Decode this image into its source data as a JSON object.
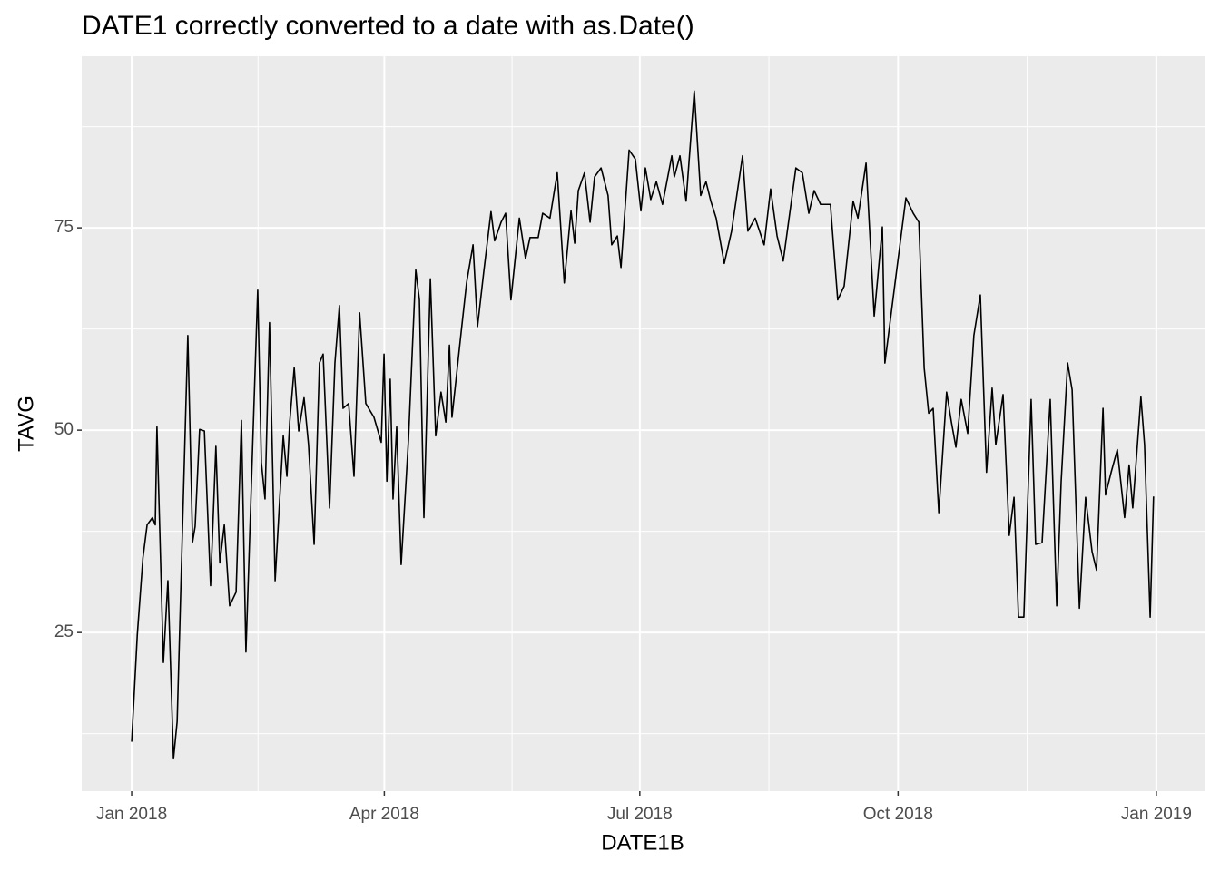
{
  "chart_data": {
    "type": "line",
    "title": "DATE1 correctly converted to a date with as.Date()",
    "x_label": "DATE1B",
    "y_label": "TAVG",
    "xlim": [
      -17.8,
      382.5
    ],
    "ylim": [
      5.4,
      96.2
    ],
    "xticks": [
      {
        "value": 0,
        "label": "Jan 2018"
      },
      {
        "value": 90,
        "label": "Apr 2018"
      },
      {
        "value": 181,
        "label": "Jul 2018"
      },
      {
        "value": 273,
        "label": "Oct 2018"
      },
      {
        "value": 365,
        "label": "Jan 2019"
      }
    ],
    "xticks_minor": [
      45,
      135.5,
      227,
      319
    ],
    "yticks": [
      25,
      50,
      75
    ],
    "yticks_minor": [
      12.5,
      37.5,
      62.5,
      87.5
    ],
    "grid": true,
    "color": "#000000",
    "x": [
      0,
      2,
      4,
      5.5,
      7.4,
      8.4,
      9,
      11.3,
      12.9,
      14.9,
      16.2,
      20,
      21.7,
      22.6,
      24.2,
      25.9,
      28.1,
      30,
      31.4,
      33,
      34.9,
      37.2,
      39.1,
      40.7,
      44.9,
      46.2,
      47.5,
      49.1,
      51.1,
      54,
      55.3,
      56.3,
      57.9,
      59.5,
      61.4,
      63,
      65,
      66.9,
      68.2,
      70.5,
      72.4,
      74,
      75.3,
      77.3,
      79.2,
      81.2,
      83.4,
      86.3,
      88.9,
      89.9,
      90.9,
      92.1,
      93.1,
      94.4,
      96,
      98.6,
      101.2,
      102.5,
      104.1,
      106.4,
      108.3,
      110.2,
      111.9,
      113.2,
      114.1,
      117.4,
      119.3,
      121.6,
      123.2,
      125.4,
      128,
      129.3,
      131.6,
      133.2,
      135.1,
      138.1,
      140.3,
      141.9,
      144.8,
      146.4,
      149,
      151.6,
      154.1,
      156.5,
      157.8,
      159.1,
      161.3,
      163.3,
      164.9,
      167.2,
      169.7,
      171,
      173,
      174.3,
      177.2,
      179.4,
      181.4,
      183,
      184.9,
      186.9,
      189.1,
      192.4,
      193.3,
      195.3,
      197.5,
      200.4,
      202.7,
      204.6,
      206.3,
      208.2,
      211.1,
      213.7,
      217.6,
      219.5,
      222.1,
      225.3,
      227.6,
      229.9,
      232.1,
      236.6,
      238.9,
      241.2,
      243.1,
      245.4,
      248.9,
      251.5,
      253.8,
      257,
      258.7,
      261.6,
      264.5,
      267.4,
      268.3,
      271.6,
      275.8,
      278.4,
      280.4,
      282.3,
      283.9,
      285.5,
      287.5,
      290.3,
      292,
      293.6,
      295.5,
      297.8,
      300,
      302.3,
      304.5,
      306.5,
      307.8,
      310.4,
      312.6,
      314.3,
      315.9,
      317.8,
      320.4,
      322,
      324.3,
      327.2,
      329.5,
      331.1,
      333.4,
      335,
      337.6,
      339.8,
      342.1,
      343.7,
      346,
      346.9,
      348.9,
      351.1,
      353.7,
      355.3,
      356.6,
      359.5,
      360.8,
      362.8,
      364
    ],
    "values": [
      11.5,
      24.7,
      34.2,
      38.3,
      39.2,
      38.3,
      50.4,
      21.3,
      31.4,
      9.4,
      14,
      61.7,
      36.2,
      38.1,
      50.1,
      49.9,
      30.8,
      48,
      33.6,
      38.3,
      28.3,
      30,
      51.2,
      22.6,
      67.3,
      46,
      41.5,
      63.3,
      31.4,
      49.3,
      44.3,
      51,
      57.7,
      49.9,
      54,
      48.2,
      35.9,
      58.3,
      59.4,
      40.4,
      58.3,
      65.4,
      52.7,
      53.3,
      44.3,
      64.5,
      53.3,
      51.6,
      48.5,
      59.4,
      43.7,
      56.3,
      41.5,
      50.4,
      33.4,
      48.8,
      69.8,
      66.1,
      39.2,
      68.7,
      49.3,
      54.7,
      51,
      60.5,
      51.6,
      62.2,
      68.2,
      72.9,
      62.8,
      69.5,
      77,
      73.4,
      75.7,
      76.8,
      66.1,
      76.2,
      71.2,
      73.8,
      73.8,
      76.8,
      76.2,
      81.8,
      68.2,
      77.1,
      73.1,
      79.6,
      81.8,
      75.7,
      81.3,
      82.4,
      79,
      72.9,
      74,
      70.1,
      84.6,
      83.5,
      77.1,
      82.4,
      78.5,
      80.7,
      77.9,
      83.9,
      81.3,
      83.9,
      78.3,
      91.9,
      79,
      80.7,
      78.3,
      76.2,
      70.6,
      74.6,
      83.9,
      74.6,
      76.2,
      72.9,
      79.8,
      74,
      70.9,
      82.4,
      81.8,
      76.8,
      79.6,
      77.9,
      77.9,
      66.1,
      67.8,
      78.3,
      76.2,
      83,
      64.1,
      75.1,
      58.3,
      67.3,
      78.7,
      76.8,
      75.7,
      57.7,
      52.1,
      52.7,
      39.8,
      54.7,
      51,
      47.9,
      53.8,
      49.6,
      61.7,
      66.7,
      44.8,
      55.2,
      48.2,
      54.4,
      37,
      41.7,
      26.9,
      26.9,
      53.8,
      35.9,
      36.1,
      53.8,
      28.3,
      43.7,
      58.3,
      55,
      28,
      41.7,
      35,
      32.7,
      52.7,
      42,
      44.8,
      47.6,
      39.2,
      45.7,
      40.4,
      54.1,
      48.2,
      26.9,
      41.8
    ]
  }
}
